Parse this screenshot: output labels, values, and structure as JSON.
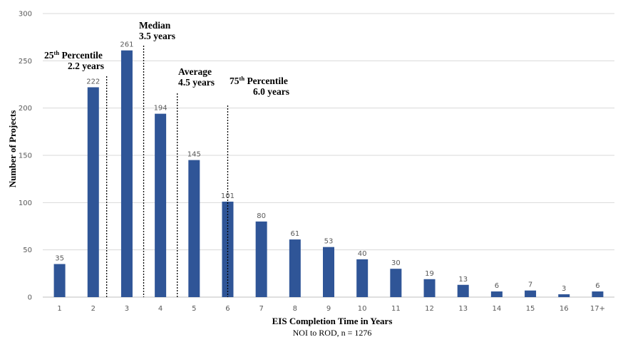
{
  "chart_data": {
    "type": "bar",
    "categories": [
      "1",
      "2",
      "3",
      "4",
      "5",
      "6",
      "7",
      "8",
      "9",
      "10",
      "11",
      "12",
      "13",
      "14",
      "15",
      "16",
      "17+"
    ],
    "values": [
      35,
      222,
      261,
      194,
      145,
      101,
      80,
      61,
      53,
      40,
      30,
      19,
      13,
      6,
      7,
      3,
      6
    ],
    "xlabel": "EIS Completion Time in Years",
    "xlabel_sub": "NOI to ROD, n = 1276",
    "ylabel": "Number of Projects",
    "ylim": [
      0,
      300
    ],
    "yticks": [
      0,
      50,
      100,
      150,
      200,
      250,
      300
    ],
    "grid": true,
    "bar_color": "#2F5597",
    "annotations": [
      {
        "id": "p25",
        "x": 2.4,
        "line1_prefix": "25",
        "line1_sup": "th",
        "line1_suffix": " Percentile",
        "line2": "2.2 years"
      },
      {
        "id": "median",
        "x": 3.5,
        "line1_prefix": "Median",
        "line1_sup": "",
        "line1_suffix": "",
        "line2": "3.5 years"
      },
      {
        "id": "average",
        "x": 4.5,
        "line1_prefix": "Average",
        "line1_sup": "",
        "line1_suffix": "",
        "line2": "4.5 years"
      },
      {
        "id": "p75",
        "x": 6.0,
        "line1_prefix": "75",
        "line1_sup": "th",
        "line1_suffix": " Percentile",
        "line2": "6.0 years"
      }
    ]
  }
}
